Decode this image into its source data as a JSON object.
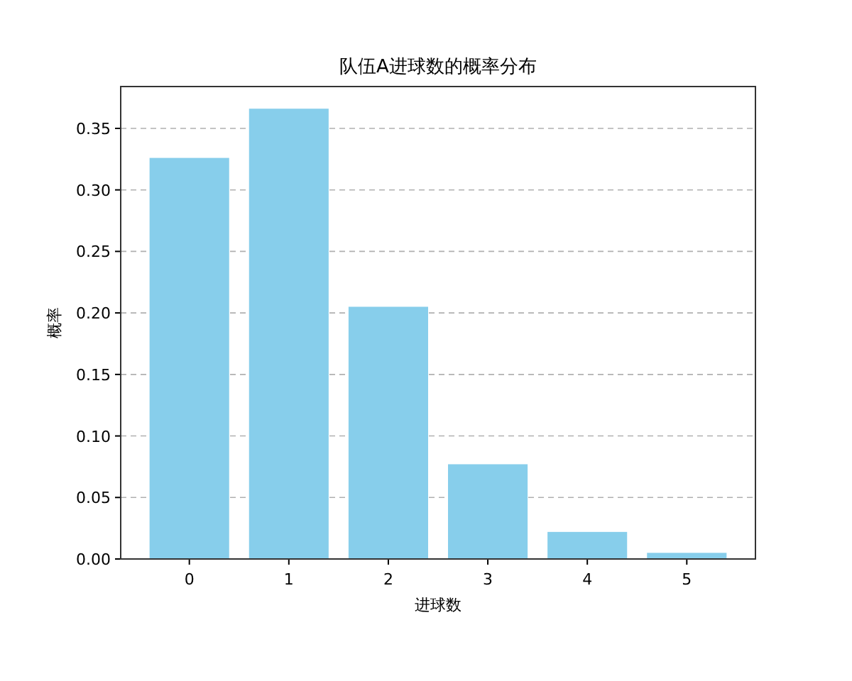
{
  "chart_data": {
    "type": "bar",
    "title": "队伍A进球数的概率分布",
    "xlabel": "进球数",
    "ylabel": "概率",
    "categories": [
      "0",
      "1",
      "2",
      "3",
      "4",
      "5"
    ],
    "values": [
      0.326,
      0.366,
      0.205,
      0.077,
      0.022,
      0.005
    ],
    "color": "#87ceeb",
    "ylim": [
      0,
      0.384
    ],
    "yticks": [
      {
        "value": 0,
        "label": "0.00"
      },
      {
        "value": 0.05,
        "label": "0.05"
      },
      {
        "value": 0.1,
        "label": "0.10"
      },
      {
        "value": 0.15,
        "label": "0.15"
      },
      {
        "value": 0.2,
        "label": "0.20"
      },
      {
        "value": 0.25,
        "label": "0.25"
      },
      {
        "value": 0.3,
        "label": "0.30"
      },
      {
        "value": 0.35,
        "label": "0.35"
      }
    ],
    "grid": "y"
  }
}
